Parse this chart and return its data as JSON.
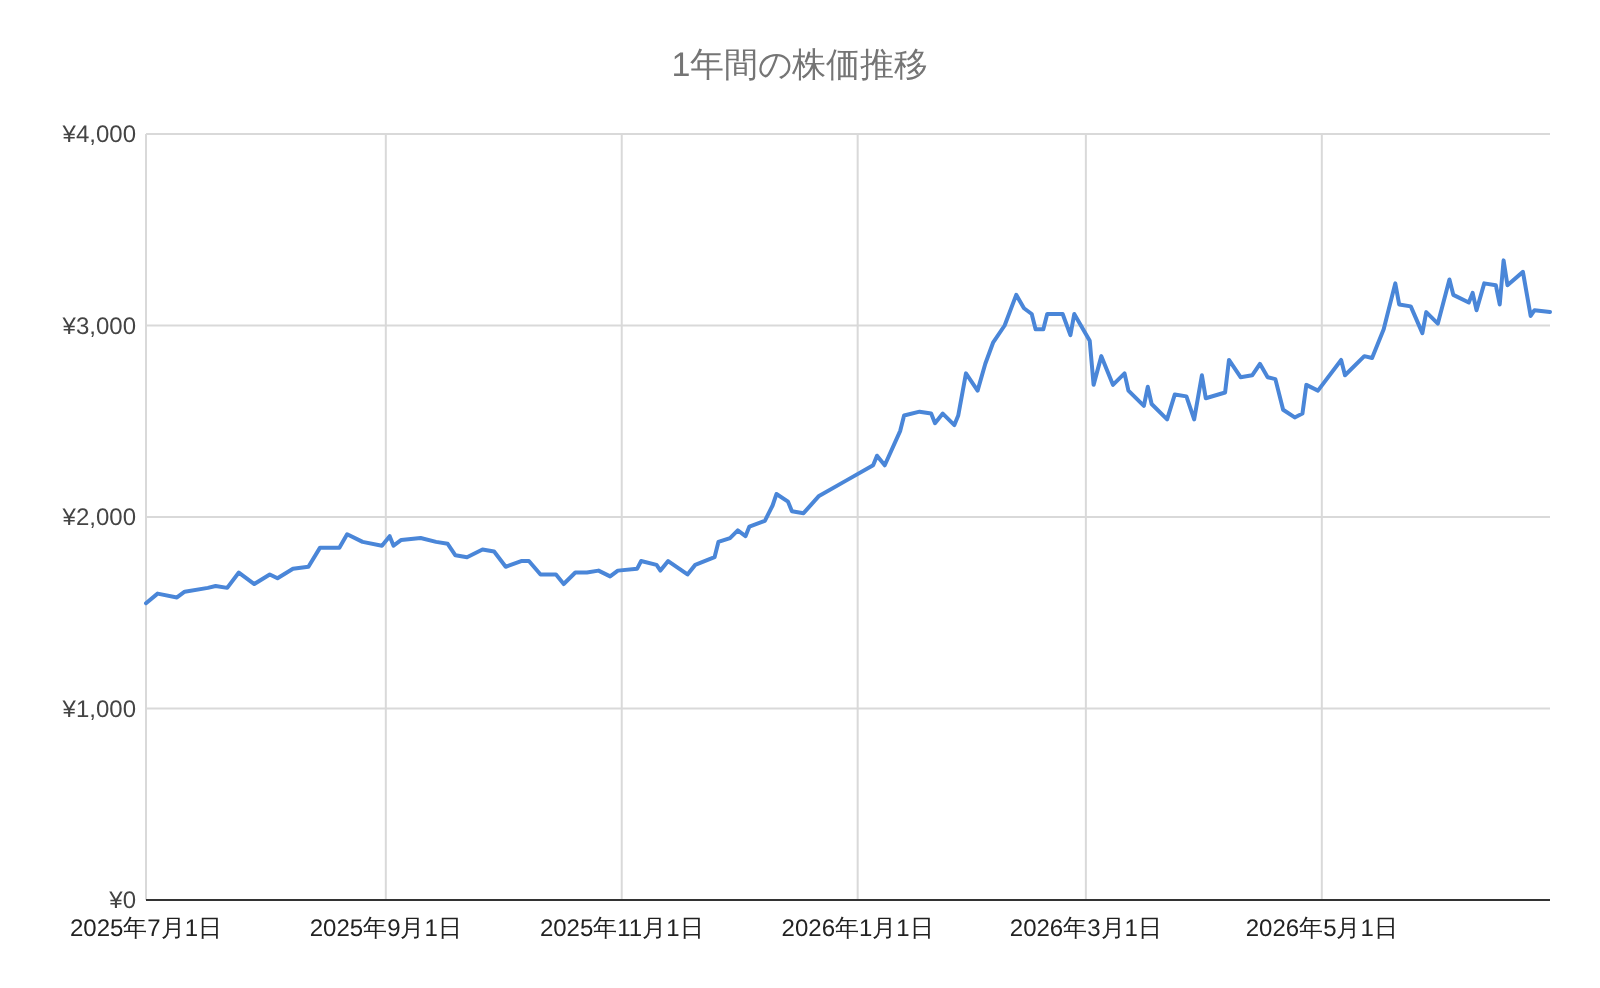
{
  "chart_data": {
    "type": "line",
    "title": "1年間の株価推移",
    "x": [
      "2025-07-01",
      "2025-07-04",
      "2025-07-09",
      "2025-07-11",
      "2025-07-17",
      "2025-07-19",
      "2025-07-22",
      "2025-07-25",
      "2025-07-29",
      "2025-08-02",
      "2025-08-04",
      "2025-08-08",
      "2025-08-12",
      "2025-08-15",
      "2025-08-20",
      "2025-08-22",
      "2025-08-26",
      "2025-08-31",
      "2025-09-02",
      "2025-09-03",
      "2025-09-05",
      "2025-09-10",
      "2025-09-14",
      "2025-09-17",
      "2025-09-19",
      "2025-09-22",
      "2025-09-26",
      "2025-09-29",
      "2025-10-02",
      "2025-10-06",
      "2025-10-08",
      "2025-10-11",
      "2025-10-15",
      "2025-10-17",
      "2025-10-20",
      "2025-10-23",
      "2025-10-26",
      "2025-10-29",
      "2025-10-31",
      "2025-11-05",
      "2025-11-06",
      "2025-11-10",
      "2025-11-11",
      "2025-11-13",
      "2025-11-18",
      "2025-11-20",
      "2025-11-25",
      "2025-11-26",
      "2025-11-29",
      "2025-12-01",
      "2025-12-03",
      "2025-12-04",
      "2025-12-08",
      "2025-12-10",
      "2025-12-11",
      "2025-12-14",
      "2025-12-15",
      "2025-12-18",
      "2025-12-22",
      "2025-12-29",
      "2026-01-05",
      "2026-01-06",
      "2026-01-08",
      "2026-01-12",
      "2026-01-13",
      "2026-01-17",
      "2026-01-20",
      "2026-01-21",
      "2026-01-23",
      "2026-01-26",
      "2026-01-27",
      "2026-01-29",
      "2026-02-01",
      "2026-02-03",
      "2026-02-05",
      "2026-02-08",
      "2026-02-11",
      "2026-02-13",
      "2026-02-15",
      "2026-02-16",
      "2026-02-18",
      "2026-02-19",
      "2026-02-23",
      "2026-02-25",
      "2026-02-26",
      "2026-03-02",
      "2026-03-03",
      "2026-03-05",
      "2026-03-08",
      "2026-03-11",
      "2026-03-12",
      "2026-03-16",
      "2026-03-17",
      "2026-03-18",
      "2026-03-22",
      "2026-03-24",
      "2026-03-27",
      "2026-03-29",
      "2026-03-31",
      "2026-04-01",
      "2026-04-06",
      "2026-04-07",
      "2026-04-10",
      "2026-04-13",
      "2026-04-15",
      "2026-04-17",
      "2026-04-19",
      "2026-04-21",
      "2026-04-24",
      "2026-04-26",
      "2026-04-27",
      "2026-04-30",
      "2026-05-06",
      "2026-05-07",
      "2026-05-12",
      "2026-05-14",
      "2026-05-17",
      "2026-05-20",
      "2026-05-21",
      "2026-05-24",
      "2026-05-27",
      "2026-05-28",
      "2026-05-31",
      "2026-06-03",
      "2026-06-04",
      "2026-06-08",
      "2026-06-09",
      "2026-06-10",
      "2026-06-12",
      "2026-06-15",
      "2026-06-16",
      "2026-06-17",
      "2026-06-18",
      "2026-06-22",
      "2026-06-24",
      "2026-06-25",
      "2026-06-29"
    ],
    "series": [
      {
        "color": "#4a86d8",
        "values": [
          1550,
          1600,
          1580,
          1610,
          1630,
          1640,
          1630,
          1710,
          1650,
          1700,
          1680,
          1730,
          1740,
          1840,
          1840,
          1910,
          1870,
          1850,
          1900,
          1850,
          1880,
          1890,
          1870,
          1860,
          1800,
          1790,
          1830,
          1820,
          1740,
          1770,
          1770,
          1700,
          1700,
          1650,
          1710,
          1710,
          1720,
          1690,
          1720,
          1730,
          1770,
          1750,
          1720,
          1770,
          1700,
          1750,
          1790,
          1870,
          1890,
          1930,
          1900,
          1950,
          1980,
          2060,
          2120,
          2080,
          2030,
          2020,
          2110,
          2190,
          2270,
          2320,
          2270,
          2450,
          2530,
          2550,
          2540,
          2490,
          2540,
          2480,
          2530,
          2750,
          2660,
          2800,
          2910,
          3000,
          3160,
          3090,
          3060,
          2980,
          2980,
          3060,
          3060,
          2950,
          3060,
          2920,
          2690,
          2840,
          2690,
          2750,
          2660,
          2580,
          2680,
          2590,
          2510,
          2640,
          2630,
          2510,
          2740,
          2620,
          2650,
          2820,
          2730,
          2740,
          2800,
          2730,
          2720,
          2560,
          2520,
          2540,
          2690,
          2660,
          2820,
          2740,
          2840,
          2830,
          2980,
          3220,
          3110,
          3100,
          2960,
          3070,
          3010,
          3240,
          3160,
          3120,
          3170,
          3080,
          3220,
          3210,
          3110,
          3340,
          3210,
          3280,
          3050,
          3080,
          3070
        ]
      }
    ],
    "xlim": [
      "2025-07-01",
      "2026-06-29"
    ],
    "xticks": [
      {
        "value": "2025-07-01",
        "label": "2025年7月1日"
      },
      {
        "value": "2025-09-01",
        "label": "2025年9月1日"
      },
      {
        "value": "2025-11-01",
        "label": "2025年11月1日"
      },
      {
        "value": "2026-01-01",
        "label": "2026年1月1日"
      },
      {
        "value": "2026-03-01",
        "label": "2026年3月1日"
      },
      {
        "value": "2026-05-01",
        "label": "2026年5月1日"
      }
    ],
    "ylim": [
      0,
      4000
    ],
    "yticks": [
      {
        "value": 0,
        "label": "¥0"
      },
      {
        "value": 1000,
        "label": "¥1,000"
      },
      {
        "value": 2000,
        "label": "¥2,000"
      },
      {
        "value": 3000,
        "label": "¥3,000"
      },
      {
        "value": 4000,
        "label": "¥4,000"
      }
    ],
    "grid": true
  }
}
